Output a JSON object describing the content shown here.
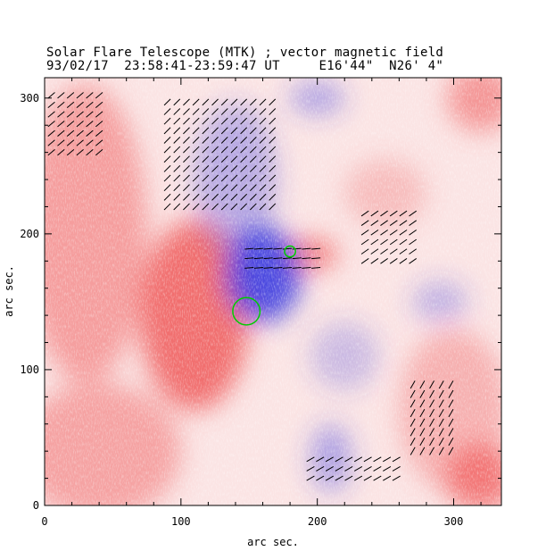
{
  "chart_data": {
    "type": "heatmap",
    "title": "Solar Flare Telescope (MTK) ; vector magnetic field",
    "subtitle": "93/02/17  23:58:41-23:59:47 UT     E16'44\"  N26' 4\"",
    "xlabel": "arc sec.",
    "ylabel": "arc sec.",
    "xlim": [
      0,
      335
    ],
    "ylim": [
      0,
      315
    ],
    "xticks": [
      "0",
      "100",
      "200",
      "300"
    ],
    "yticks": [
      "0",
      "100",
      "200",
      "300"
    ],
    "xtick_values": [
      0,
      100,
      200,
      300
    ],
    "ytick_values": [
      0,
      100,
      200,
      300
    ],
    "colors": {
      "positive": "#f06060",
      "negative": "#3a3ae0",
      "neutral_line": "#00cc00",
      "vector": "#000000"
    },
    "regions": [
      {
        "polarity": "positive",
        "x": 110,
        "y": 140,
        "rx": 40,
        "ry": 70,
        "strength": 0.9
      },
      {
        "polarity": "positive",
        "x": 30,
        "y": 200,
        "rx": 45,
        "ry": 110,
        "strength": 0.55
      },
      {
        "polarity": "positive",
        "x": 40,
        "y": 40,
        "rx": 60,
        "ry": 50,
        "strength": 0.5
      },
      {
        "polarity": "positive",
        "x": 320,
        "y": 20,
        "rx": 25,
        "ry": 25,
        "strength": 0.8
      },
      {
        "polarity": "positive",
        "x": 320,
        "y": 300,
        "rx": 25,
        "ry": 25,
        "strength": 0.6
      },
      {
        "polarity": "positive",
        "x": 195,
        "y": 185,
        "rx": 20,
        "ry": 12,
        "strength": 0.8
      },
      {
        "polarity": "positive",
        "x": 300,
        "y": 70,
        "rx": 40,
        "ry": 60,
        "strength": 0.4
      },
      {
        "polarity": "positive",
        "x": 250,
        "y": 230,
        "rx": 30,
        "ry": 25,
        "strength": 0.3
      },
      {
        "polarity": "negative",
        "x": 160,
        "y": 170,
        "rx": 28,
        "ry": 35,
        "strength": 0.9
      },
      {
        "polarity": "negative",
        "x": 140,
        "y": 240,
        "rx": 30,
        "ry": 55,
        "strength": 0.35
      },
      {
        "polarity": "negative",
        "x": 210,
        "y": 35,
        "rx": 15,
        "ry": 25,
        "strength": 0.4
      },
      {
        "polarity": "negative",
        "x": 200,
        "y": 300,
        "rx": 20,
        "ry": 12,
        "strength": 0.4
      },
      {
        "polarity": "negative",
        "x": 290,
        "y": 150,
        "rx": 20,
        "ry": 15,
        "strength": 0.3
      },
      {
        "polarity": "negative",
        "x": 220,
        "y": 110,
        "rx": 25,
        "ry": 25,
        "strength": 0.25
      }
    ],
    "vector_fields": [
      {
        "x0": 5,
        "x1": 40,
        "y0": 260,
        "y1": 305,
        "angle": 40
      },
      {
        "x0": 90,
        "x1": 170,
        "y0": 220,
        "y1": 300,
        "angle": 45
      },
      {
        "x0": 150,
        "x1": 200,
        "y0": 175,
        "y1": 195,
        "angle": 5
      },
      {
        "x0": 235,
        "x1": 270,
        "y0": 180,
        "y1": 215,
        "angle": 35
      },
      {
        "x0": 195,
        "x1": 260,
        "y0": 20,
        "y1": 35,
        "angle": 30
      },
      {
        "x0": 270,
        "x1": 300,
        "y0": 40,
        "y1": 90,
        "angle": 60
      }
    ],
    "neutral_contours": [
      {
        "x": 148,
        "y": 143,
        "r": 10
      },
      {
        "x": 180,
        "y": 187,
        "r": 4
      }
    ]
  }
}
